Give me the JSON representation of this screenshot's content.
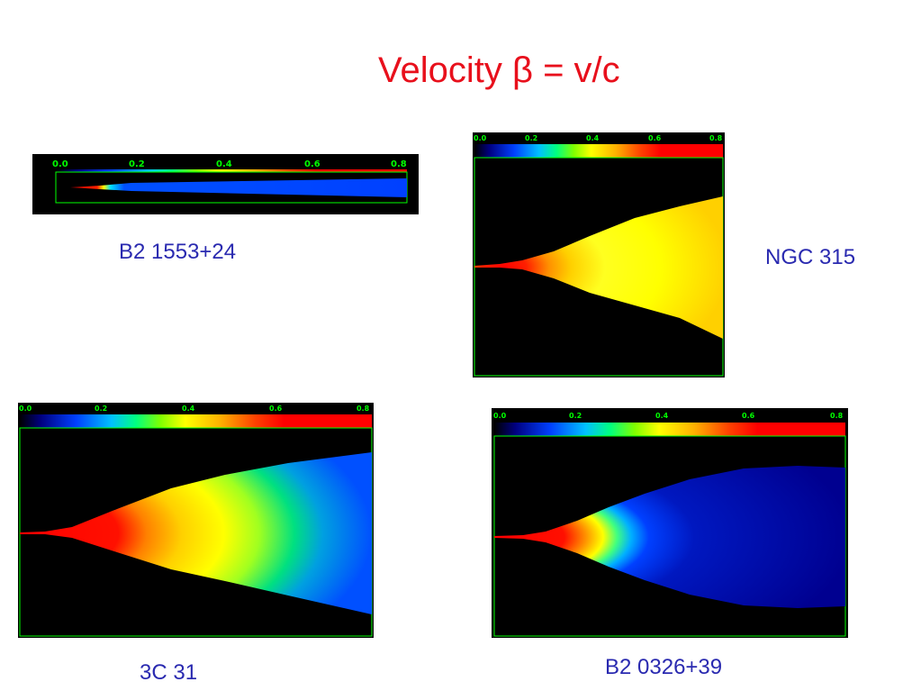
{
  "slide": {
    "title": "Velocity β = v/c"
  },
  "colorbar_ticks": [
    "0.0",
    "0.2",
    "0.4",
    "0.6",
    "0.8"
  ],
  "panels": [
    {
      "id": "b2-1553",
      "label": "B2 1553+24"
    },
    {
      "id": "ngc315",
      "label": "NGC 315"
    },
    {
      "id": "3c31",
      "label": "3C 31"
    },
    {
      "id": "b2-0326",
      "label": "B2 0326+39"
    }
  ],
  "colors": {
    "title": "#e8101c",
    "labels": "#2a2ab0",
    "frame": "#00ff00"
  }
}
